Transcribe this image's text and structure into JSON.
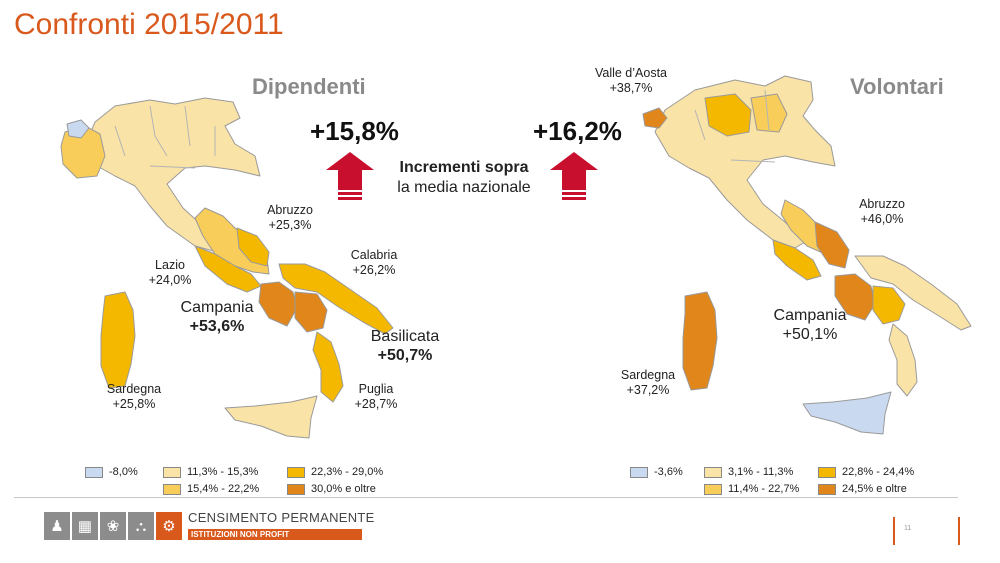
{
  "slide": {
    "title": "Confronti 2015/2011",
    "page_number": "11"
  },
  "left_panel": {
    "heading": "Dipendenti",
    "labels": {
      "abruzzo": {
        "name": "Abruzzo",
        "value": "+25,3%"
      },
      "lazio": {
        "name": "Lazio",
        "value": "+24,0%"
      },
      "calabria": {
        "name": "Calabria",
        "value": "+26,2%"
      },
      "campania": {
        "name": "Campania",
        "value": "+53,6%"
      },
      "basilicata": {
        "name": "Basilicata",
        "value": "+50,7%"
      },
      "sardegna": {
        "name": "Sardegna",
        "value": "+25,8%"
      },
      "puglia": {
        "name": "Puglia",
        "value": "+28,7%"
      }
    },
    "legend": [
      {
        "label": "-8,0%",
        "color": "#c9d9ef"
      },
      {
        "label": "11,3% - 15,3%",
        "color": "#fae3a6"
      },
      {
        "label": "22,3% - 29,0%",
        "color": "#f5b800"
      },
      {
        "label": "15,4% - 22,2%",
        "color": "#f9cd5a"
      },
      {
        "label": "30,0% e oltre",
        "color": "#e0861b"
      }
    ]
  },
  "right_panel": {
    "heading": "Volontari",
    "labels": {
      "valle_aosta": {
        "name": "Valle d’Aosta",
        "value": "+38,7%"
      },
      "abruzzo": {
        "name": "Abruzzo",
        "value": "+46,0%"
      },
      "campania": {
        "name": "Campania",
        "value": "+50,1%"
      },
      "sardegna": {
        "name": "Sardegna",
        "value": "+37,2%"
      }
    },
    "legend": [
      {
        "label": "-3,6%",
        "color": "#c9d9ef"
      },
      {
        "label": "3,1% - 11,3%",
        "color": "#fae3a6"
      },
      {
        "label": "22,8% - 24,4%",
        "color": "#f5b800"
      },
      {
        "label": "11,4% - 22,7%",
        "color": "#f9cd5a"
      },
      {
        "label": "24,5% e oltre",
        "color": "#e0861b"
      }
    ]
  },
  "center": {
    "left_pct": "+15,8%",
    "right_pct": "+16,2%",
    "note_line1": "Incrementi sopra",
    "note_line2": "la media nazionale",
    "arrow_color": "#c8102e"
  },
  "footer": {
    "brand": "CENSIMENTO PERMANENTE",
    "brand_sub": "ISTITUZIONI NON PROFIT",
    "icons": [
      "people-icon",
      "building-icon",
      "wheat-icon",
      "museum-icon",
      "gear-icon"
    ]
  }
}
